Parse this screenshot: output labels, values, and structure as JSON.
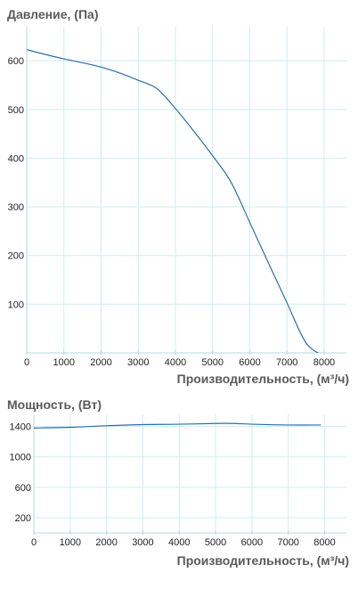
{
  "chart_data": [
    {
      "type": "line",
      "title": "Давление, (Па)",
      "xlabel": "Производительность, (м³/ч)",
      "ylabel": "",
      "xlim": [
        0,
        8600
      ],
      "ylim": [
        0,
        670
      ],
      "xticks": [
        0,
        1000,
        2000,
        3000,
        4000,
        5000,
        6000,
        7000,
        8000
      ],
      "yticks": [
        100,
        200,
        300,
        400,
        500,
        600
      ],
      "grid": true,
      "series": [
        {
          "color": "#2a6fa8",
          "x": [
            0,
            500,
            1000,
            1500,
            2000,
            2500,
            3000,
            3500,
            4000,
            4500,
            5000,
            5500,
            6000,
            6500,
            7000,
            7500,
            7950
          ],
          "y": [
            623,
            613,
            604,
            596,
            587,
            575,
            560,
            543,
            502,
            455,
            405,
            350,
            268,
            185,
            103,
            22,
            -5
          ]
        }
      ]
    },
    {
      "type": "line",
      "title": "Мощность, (Вт)",
      "xlabel": "Производительность, (м³/ч)",
      "ylabel": "",
      "xlim": [
        0,
        8600
      ],
      "ylim": [
        0,
        1560
      ],
      "xticks": [
        0,
        1000,
        2000,
        3000,
        4000,
        5000,
        6000,
        7000,
        8000
      ],
      "yticks": [
        200,
        600,
        1000,
        1400
      ],
      "grid": true,
      "series": [
        {
          "color": "#2a6fa8",
          "x": [
            0,
            1000,
            2000,
            3000,
            4000,
            5000,
            5500,
            6000,
            7000,
            7900
          ],
          "y": [
            1380,
            1390,
            1410,
            1425,
            1430,
            1440,
            1440,
            1430,
            1420,
            1420
          ]
        }
      ]
    }
  ]
}
